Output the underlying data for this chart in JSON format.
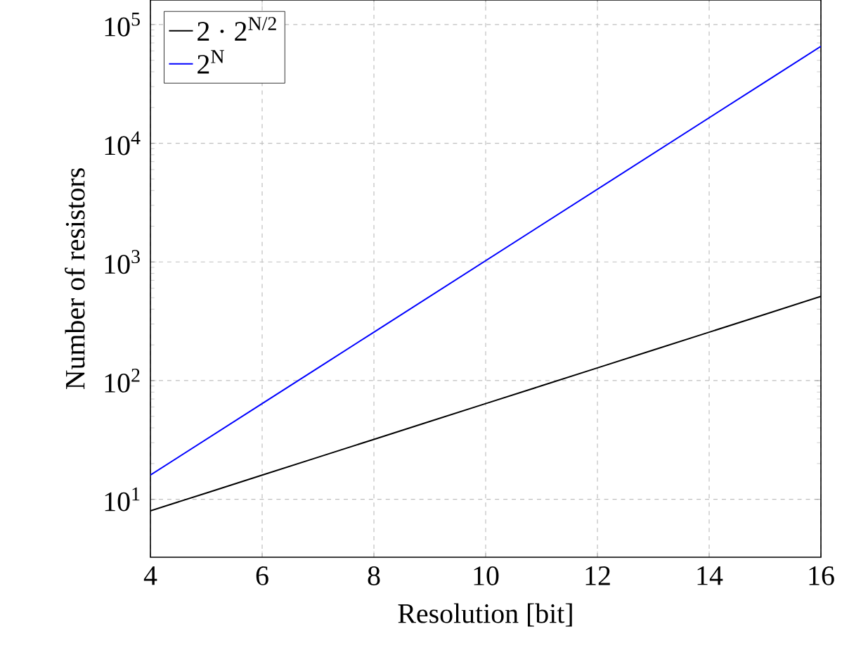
{
  "chart_data": {
    "type": "line",
    "xlabel": "Resolution [bit]",
    "ylabel": "Number of resistors",
    "log": "y",
    "grid": true,
    "legend": "top left",
    "xlim": [
      4,
      16
    ],
    "ylim": [
      3.25,
      161000
    ],
    "xticks": [
      4,
      6,
      8,
      10,
      12,
      14,
      16
    ],
    "yticks": [
      {
        "value": 10,
        "label": "10$^{1}$"
      },
      {
        "value": 100,
        "label": "10$^{2}$"
      },
      {
        "value": 1000,
        "label": "10$^{3}$"
      },
      {
        "value": 10000,
        "label": "10$^{4}$"
      },
      {
        "value": 100000,
        "label": "10$^{5}$"
      }
    ],
    "x": [
      4,
      5,
      6,
      7,
      8,
      9,
      10,
      11,
      12,
      13,
      14,
      15,
      16
    ],
    "series": [
      {
        "name": "2 · 2$^{N/2}$",
        "color": "#000000",
        "values": [
          8,
          11.3,
          16,
          22.6,
          32,
          45.3,
          64,
          90.5,
          128,
          181,
          256,
          362,
          512
        ]
      },
      {
        "name": "2$^{N}$",
        "color": "#0000ff",
        "values": [
          16,
          32,
          64,
          128,
          256,
          512,
          1024,
          2048,
          4096,
          8192,
          16384,
          32768,
          65536
        ]
      }
    ]
  }
}
